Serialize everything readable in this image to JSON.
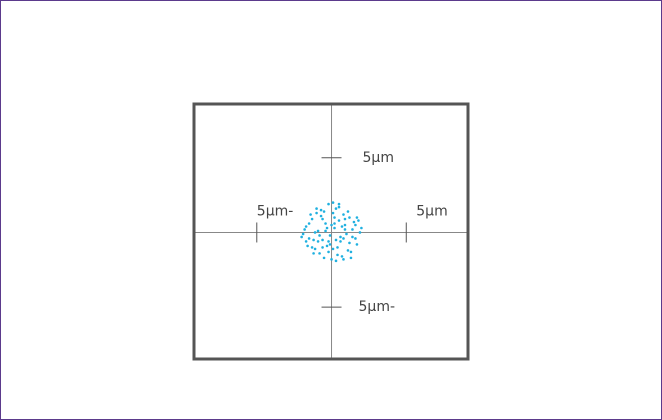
{
  "chart_data": {
    "type": "scatter",
    "x": [
      -0.2,
      0.3,
      0.8,
      -0.7,
      1.2,
      -1.3,
      0.1,
      0.5,
      -0.4,
      1.6,
      -1.7,
      0.9,
      -0.9,
      0.2,
      -0.1,
      1.4,
      -1.5,
      0.6,
      -0.6,
      1.9,
      -1.9,
      0.4,
      -0.3,
      1.1,
      -1.1,
      0.7,
      -0.8,
      1.7,
      -1.6,
      0.0,
      0.3,
      -0.5,
      1.3,
      -1.2,
      0.8,
      -0.2,
      2.0,
      -2.0,
      0.5,
      -0.7,
      1.5,
      -1.4,
      0.1,
      0.9,
      -1.0,
      1.8,
      -1.8,
      0.2,
      -0.4,
      1.0,
      -0.9,
      0.6,
      -0.1,
      1.2,
      -1.3,
      0.4,
      -0.6,
      1.6,
      -1.5,
      0.0,
      0.7,
      -0.3,
      1.4,
      -1.1,
      0.3,
      -0.8,
      0.9,
      -0.5,
      1.1,
      -1.7,
      0.2,
      0.5,
      -0.2,
      -1.0,
      1.3,
      0.8,
      -0.6,
      0.1,
      -1.2,
      1.7
    ],
    "values": [
      1.9,
      1.6,
      1.2,
      1.5,
      1.0,
      0.9,
      1.3,
      0.8,
      0.6,
      0.5,
      0.4,
      0.2,
      0.1,
      0.3,
      -0.2,
      -0.3,
      -0.4,
      -0.6,
      -0.5,
      0.0,
      -0.1,
      -1.0,
      -0.9,
      -1.2,
      -1.1,
      -1.6,
      -1.4,
      -0.8,
      -0.9,
      -1.8,
      -1.9,
      -1.7,
      -1.3,
      -1.4,
      -0.4,
      -1.3,
      0.3,
      -0.3,
      1.7,
      1.1,
      0.7,
      1.2,
      2.0,
      0.9,
      1.6,
      0.8,
      0.2,
      0.6,
      0.1,
      -0.1,
      -0.6,
      -0.3,
      -0.8,
      -0.7,
      -1.0,
      -1.5,
      -1.0,
      -0.4,
      0.6,
      0.5,
      0.4,
      0.3,
      0.2,
      0.0,
      -0.5,
      -0.2,
      0.5,
      1.4,
      1.4,
      -0.6,
      1.0,
      1.9,
      -0.6,
      1.3,
      -1.7,
      -1.8,
      0.9,
      -1.1,
      -0.5,
      1.0
    ],
    "color": "#1fb0e0",
    "xlim": [
      -9.2,
      9.13
    ],
    "ylim": [
      -8.47,
      8.6
    ],
    "xticks": [
      {
        "value": -5,
        "label": "5μm-"
      },
      {
        "value": 5,
        "label": "5μm"
      }
    ],
    "yticks": [
      {
        "value": 5,
        "label": "5μm"
      },
      {
        "value": -5,
        "label": "5μm-"
      }
    ]
  }
}
